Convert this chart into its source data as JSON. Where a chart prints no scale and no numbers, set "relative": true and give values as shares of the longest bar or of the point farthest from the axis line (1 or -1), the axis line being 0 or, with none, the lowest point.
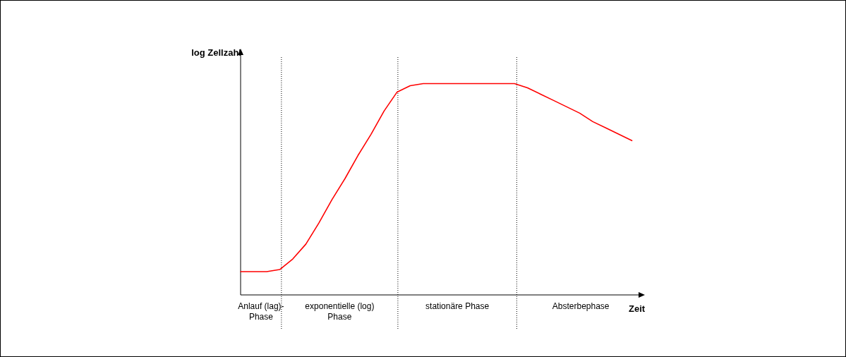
{
  "chart_data": {
    "type": "line",
    "relative": true,
    "ylabel": "log Zellzahl",
    "xlabel": "Zeit",
    "categories": [
      null,
      null,
      null,
      null,
      null,
      null,
      null,
      null,
      null,
      null,
      null,
      null,
      null,
      null,
      null,
      null,
      null,
      null,
      null,
      null,
      null,
      null,
      null,
      null,
      null,
      null,
      null,
      null,
      null,
      null,
      null,
      null
    ],
    "series": [
      {
        "color": "#ff0000",
        "values": [
          0.11,
          0.11,
          0.11,
          0.12,
          0.17,
          0.24,
          0.34,
          0.45,
          0.55,
          0.66,
          0.76,
          0.87,
          0.96,
          0.99,
          1,
          1,
          1,
          1,
          1,
          1,
          1,
          1,
          0.98,
          0.95,
          0.92,
          0.89,
          0.86,
          0.82,
          0.79,
          0.76,
          0.73,
          null
        ]
      }
    ],
    "annotations": [
      "Anlauf (lag)-Phase",
      "exponentielle (log) Phase",
      "stationäre Phase",
      "Absterbephase"
    ],
    "legend": false,
    "marker": "none",
    "line_style": "solid"
  }
}
